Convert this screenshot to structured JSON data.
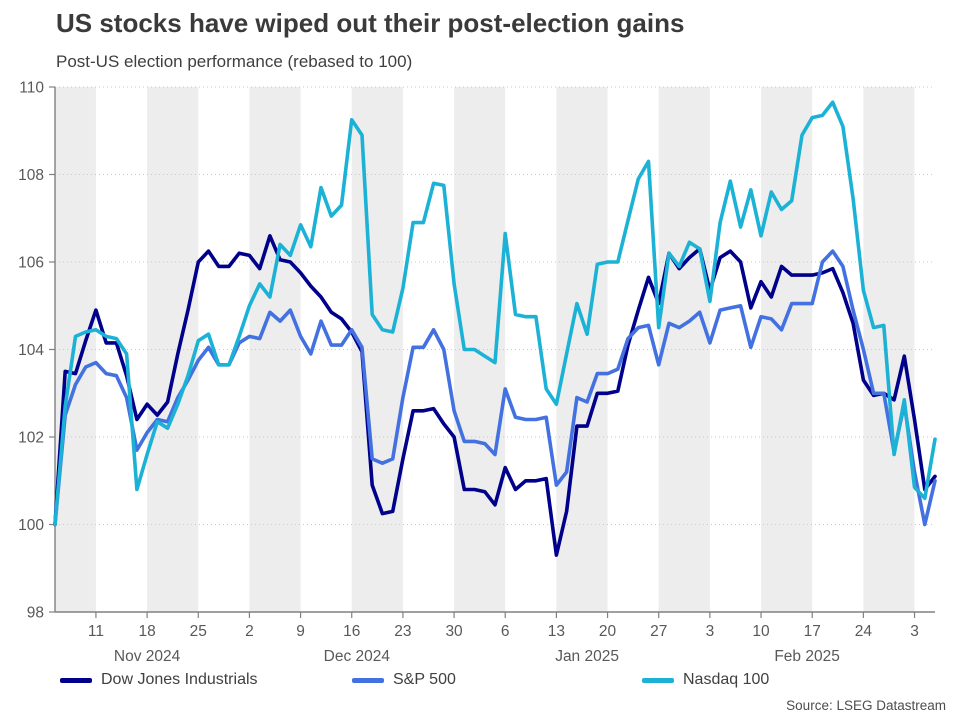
{
  "header": {
    "title": "US stocks have wiped out their post-election gains",
    "subtitle": "Post-US election performance (rebased to 100)"
  },
  "source": "Source: LSEG Datastream",
  "legend": {
    "items": [
      {
        "label": "Dow Jones Industrials",
        "color": "#00008B"
      },
      {
        "label": "S&P 500",
        "color": "#4372E0"
      },
      {
        "label": "Nasdaq 100",
        "color": "#1CB2D6"
      }
    ]
  },
  "chart_data": {
    "type": "line",
    "title": "US stocks have wiped out their post-election gains",
    "subtitle": "Post-US election performance (rebased to 100)",
    "xlabel": "",
    "ylabel": "",
    "ylim": [
      98,
      110
    ],
    "yticks": [
      98,
      100,
      102,
      104,
      106,
      108,
      110
    ],
    "grid": "dotted horizontal gridlines, alternating weekly gray bands",
    "legend_position": "bottom",
    "dates": [
      "Nov 5",
      "Nov 6",
      "Nov 7",
      "Nov 8",
      "Nov 11",
      "Nov 12",
      "Nov 13",
      "Nov 14",
      "Nov 15",
      "Nov 18",
      "Nov 19",
      "Nov 20",
      "Nov 21",
      "Nov 22",
      "Nov 25",
      "Nov 26",
      "Nov 27",
      "Nov 28",
      "Nov 29",
      "Dec 2",
      "Dec 3",
      "Dec 4",
      "Dec 5",
      "Dec 6",
      "Dec 9",
      "Dec 10",
      "Dec 11",
      "Dec 12",
      "Dec 13",
      "Dec 16",
      "Dec 17",
      "Dec 18",
      "Dec 19",
      "Dec 20",
      "Dec 23",
      "Dec 24",
      "Dec 25",
      "Dec 26",
      "Dec 27",
      "Dec 30",
      "Dec 31",
      "Jan 1",
      "Jan 2",
      "Jan 3",
      "Jan 6",
      "Jan 7",
      "Jan 8",
      "Jan 9",
      "Jan 10",
      "Jan 13",
      "Jan 14",
      "Jan 15",
      "Jan 16",
      "Jan 17",
      "Jan 20",
      "Jan 21",
      "Jan 22",
      "Jan 23",
      "Jan 24",
      "Jan 27",
      "Jan 28",
      "Jan 29",
      "Jan 30",
      "Jan 31",
      "Feb 3",
      "Feb 4",
      "Feb 5",
      "Feb 6",
      "Feb 7",
      "Feb 10",
      "Feb 11",
      "Feb 12",
      "Feb 13",
      "Feb 14",
      "Feb 17",
      "Feb 18",
      "Feb 19",
      "Feb 20",
      "Feb 21",
      "Feb 24",
      "Feb 25",
      "Feb 26",
      "Feb 27",
      "Feb 28",
      "Mar 3",
      "Mar 4",
      "Mar 5"
    ],
    "series": [
      {
        "name": "Dow Jones Industrials",
        "color": "#00008B",
        "values": [
          100.0,
          103.5,
          103.45,
          104.2,
          104.9,
          104.15,
          104.15,
          103.4,
          102.4,
          102.75,
          102.5,
          102.8,
          103.9,
          104.9,
          106.0,
          106.25,
          105.9,
          105.9,
          106.2,
          106.15,
          105.85,
          106.6,
          106.05,
          106.0,
          105.75,
          105.45,
          105.2,
          104.85,
          104.7,
          104.4,
          103.95,
          100.9,
          100.25,
          100.3,
          101.5,
          102.6,
          102.6,
          102.65,
          102.3,
          102.0,
          100.8,
          100.8,
          100.75,
          100.45,
          101.3,
          100.8,
          101.0,
          101.0,
          101.05,
          99.3,
          100.3,
          102.25,
          102.25,
          103.0,
          103.0,
          103.05,
          104.1,
          104.9,
          105.65,
          105.05,
          106.2,
          105.85,
          106.1,
          106.3,
          105.35,
          106.1,
          106.25,
          106.0,
          104.95,
          105.55,
          105.2,
          105.9,
          105.7,
          105.7,
          105.7,
          105.75,
          105.85,
          105.3,
          104.6,
          103.3,
          102.95,
          103.0,
          102.85,
          103.85,
          102.4,
          100.8,
          101.1
        ]
      },
      {
        "name": "S&P 500",
        "color": "#4372E0",
        "values": [
          100.0,
          102.5,
          103.2,
          103.6,
          103.7,
          103.45,
          103.4,
          102.9,
          101.7,
          102.1,
          102.4,
          102.35,
          102.9,
          103.3,
          103.75,
          104.05,
          103.65,
          103.65,
          104.15,
          104.3,
          104.25,
          104.85,
          104.65,
          104.9,
          104.3,
          103.9,
          104.65,
          104.1,
          104.1,
          104.45,
          104.05,
          101.5,
          101.4,
          101.5,
          102.9,
          104.05,
          104.05,
          104.45,
          104.0,
          102.6,
          101.9,
          101.9,
          101.85,
          101.6,
          103.1,
          102.45,
          102.4,
          102.4,
          102.45,
          100.9,
          101.2,
          102.9,
          102.8,
          103.45,
          103.45,
          103.55,
          104.25,
          104.5,
          104.55,
          103.65,
          104.6,
          104.5,
          104.65,
          104.85,
          104.15,
          104.9,
          104.95,
          105.0,
          104.05,
          104.75,
          104.7,
          104.45,
          105.05,
          105.05,
          105.05,
          106.0,
          106.25,
          105.9,
          104.9,
          104.0,
          103.0,
          103.0,
          101.65,
          102.75,
          101.2,
          100.0,
          101.0
        ]
      },
      {
        "name": "Nasdaq 100",
        "color": "#1CB2D6",
        "values": [
          100.0,
          102.7,
          104.3,
          104.4,
          104.45,
          104.3,
          104.25,
          103.9,
          100.8,
          101.6,
          102.35,
          102.2,
          102.75,
          103.4,
          104.2,
          104.35,
          103.65,
          103.65,
          104.3,
          105.0,
          105.5,
          105.2,
          106.4,
          106.15,
          106.85,
          106.35,
          107.7,
          107.05,
          107.3,
          109.25,
          108.9,
          104.8,
          104.45,
          104.4,
          105.4,
          106.9,
          106.9,
          107.8,
          107.75,
          105.5,
          104.0,
          104.0,
          103.85,
          103.7,
          106.65,
          104.8,
          104.75,
          104.75,
          103.1,
          102.75,
          103.9,
          105.05,
          104.35,
          105.95,
          106.0,
          106.0,
          106.95,
          107.9,
          108.3,
          104.5,
          106.2,
          105.9,
          106.45,
          106.3,
          105.1,
          106.9,
          107.85,
          106.8,
          107.65,
          106.6,
          107.6,
          107.2,
          107.4,
          108.9,
          109.3,
          109.35,
          109.65,
          109.1,
          107.45,
          105.35,
          104.5,
          104.55,
          101.6,
          102.85,
          100.85,
          100.6,
          101.95
        ]
      }
    ],
    "xticks": [
      {
        "index": 4,
        "label": "11"
      },
      {
        "index": 9,
        "label": "18"
      },
      {
        "index": 14,
        "label": "25"
      },
      {
        "index": 19,
        "label": "2"
      },
      {
        "index": 24,
        "label": "9"
      },
      {
        "index": 29,
        "label": "16"
      },
      {
        "index": 34,
        "label": "23"
      },
      {
        "index": 39,
        "label": "30"
      },
      {
        "index": 44,
        "label": "6"
      },
      {
        "index": 49,
        "label": "13"
      },
      {
        "index": 54,
        "label": "20"
      },
      {
        "index": 59,
        "label": "27"
      },
      {
        "index": 64,
        "label": "3"
      },
      {
        "index": 69,
        "label": "10"
      },
      {
        "index": 74,
        "label": "17"
      },
      {
        "index": 79,
        "label": "24"
      },
      {
        "index": 84,
        "label": "3"
      }
    ],
    "month_labels": [
      {
        "label": "Nov 2024",
        "center_index": 9
      },
      {
        "label": "Dec 2024",
        "center_index": 29.5
      },
      {
        "label": "Jan 2025",
        "center_index": 52
      },
      {
        "label": "Feb 2025",
        "center_index": 73.5
      }
    ],
    "week_bands": [
      [
        0,
        4
      ],
      [
        9,
        14
      ],
      [
        19,
        24
      ],
      [
        29,
        34
      ],
      [
        39,
        44
      ],
      [
        49,
        54
      ],
      [
        59,
        64
      ],
      [
        69,
        74
      ],
      [
        79,
        84
      ]
    ],
    "band_color": "#EDEDED",
    "grid_color": "#C9C9C9",
    "axis_color": "#808080",
    "tick_label_color": "#595959"
  }
}
